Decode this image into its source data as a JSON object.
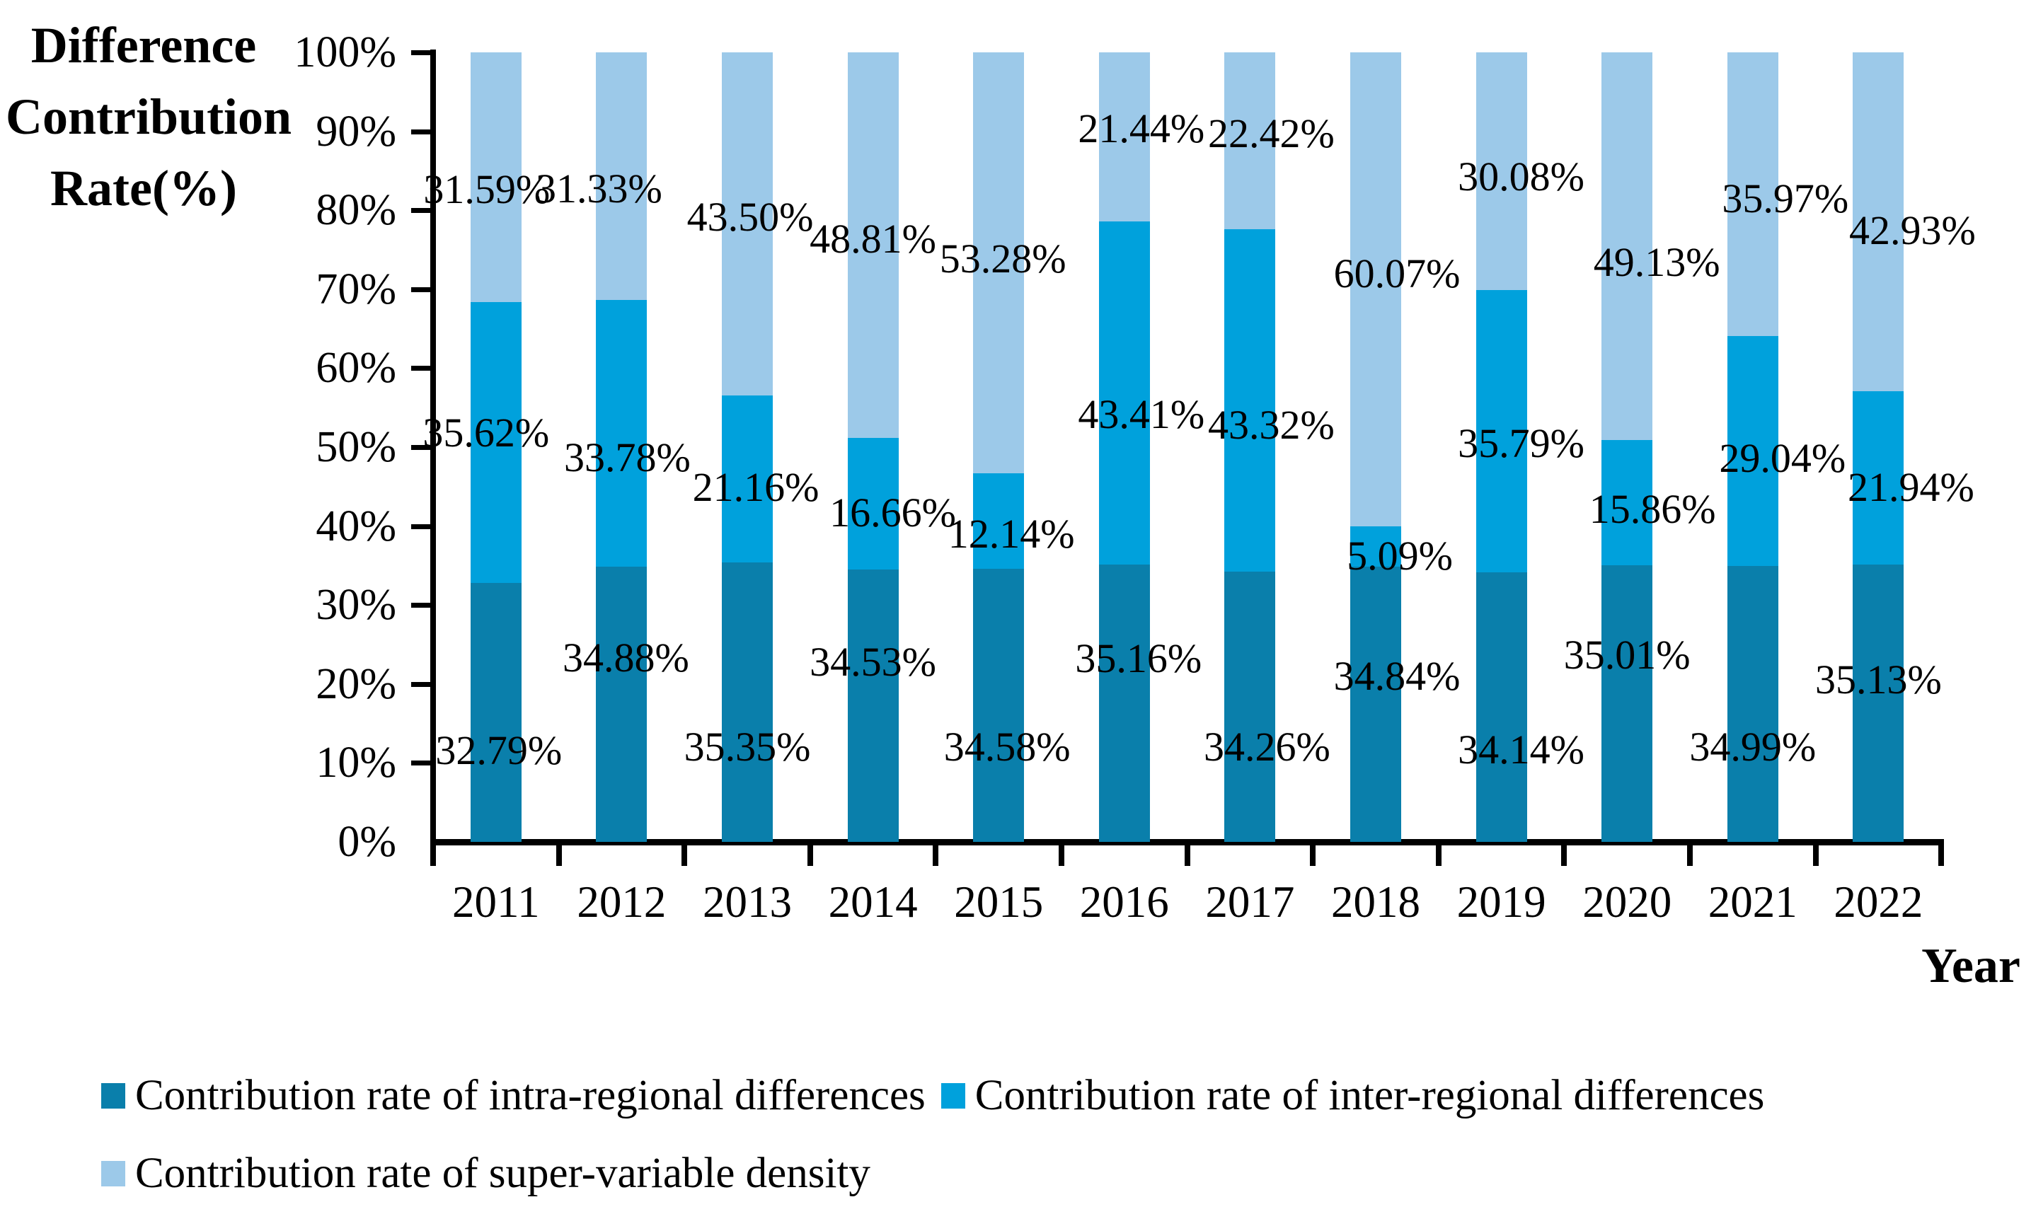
{
  "y_axis_title_lines": [
    "Difference",
    "Contribution",
    "Rate(%)"
  ],
  "y_ticks": [
    "0%",
    "10%",
    "20%",
    "30%",
    "40%",
    "50%",
    "60%",
    "70%",
    "80%",
    "90%",
    "100%"
  ],
  "chart_data": {
    "type": "bar",
    "stacked": true,
    "title": "",
    "ylabel": "Difference Contribution Rate(%)",
    "xlabel": "Year",
    "ylim": [
      0,
      100
    ],
    "y_tick_step": 10,
    "grid": false,
    "legend_position": "bottom",
    "value_suffix": "%",
    "categories": [
      "2011",
      "2012",
      "2013",
      "2014",
      "2015",
      "2016",
      "2017",
      "2018",
      "2019",
      "2020",
      "2021",
      "2022"
    ],
    "series": [
      {
        "name": "Contribution rate of intra-regional differences",
        "color": "#0a7fab",
        "values": [
          32.79,
          34.88,
          35.35,
          34.53,
          34.58,
          35.16,
          34.26,
          34.84,
          34.14,
          35.01,
          34.99,
          35.13
        ],
        "labels": [
          "32.79%",
          "34.88%",
          "35.35%",
          "34.53%",
          "34.58%",
          "35.16%",
          "34.26%",
          "34.84%",
          "34.14%",
          "35.01%",
          "34.99%",
          "35.13%"
        ]
      },
      {
        "name": "Contribution rate of inter-regional differences",
        "color": "#00a1dc",
        "values": [
          35.62,
          33.78,
          21.16,
          16.66,
          12.14,
          43.41,
          43.32,
          5.09,
          35.79,
          15.86,
          29.04,
          21.94
        ],
        "labels": [
          "35.62%",
          "33.78%",
          "21.16%",
          "16.66%",
          "12.14%",
          "43.41%",
          "43.32%",
          "5.09%",
          "35.79%",
          "15.86%",
          "29.04%",
          "21.94%"
        ]
      },
      {
        "name": "Contribution rate of super-variable density",
        "color": "#9cc9e9",
        "values": [
          31.59,
          31.33,
          43.5,
          48.81,
          53.28,
          21.44,
          22.42,
          60.07,
          30.08,
          49.13,
          35.97,
          42.93
        ],
        "labels": [
          "31.59%",
          "31.33%",
          "43.50%",
          "48.81%",
          "53.28%",
          "21.44%",
          "22.42%",
          "60.07%",
          "30.08%",
          "49.13%",
          "35.97%",
          "42.93%"
        ]
      }
    ]
  },
  "legend": {
    "row1": [
      {
        "label": "Contribution rate of intra-regional differences",
        "color": "#0a7fab"
      },
      {
        "label": "Contribution rate of inter-regional differences",
        "color": "#00a1dc"
      }
    ],
    "row2": [
      {
        "label": "Contribution rate of super-variable density",
        "color": "#9cc9e9"
      }
    ]
  }
}
